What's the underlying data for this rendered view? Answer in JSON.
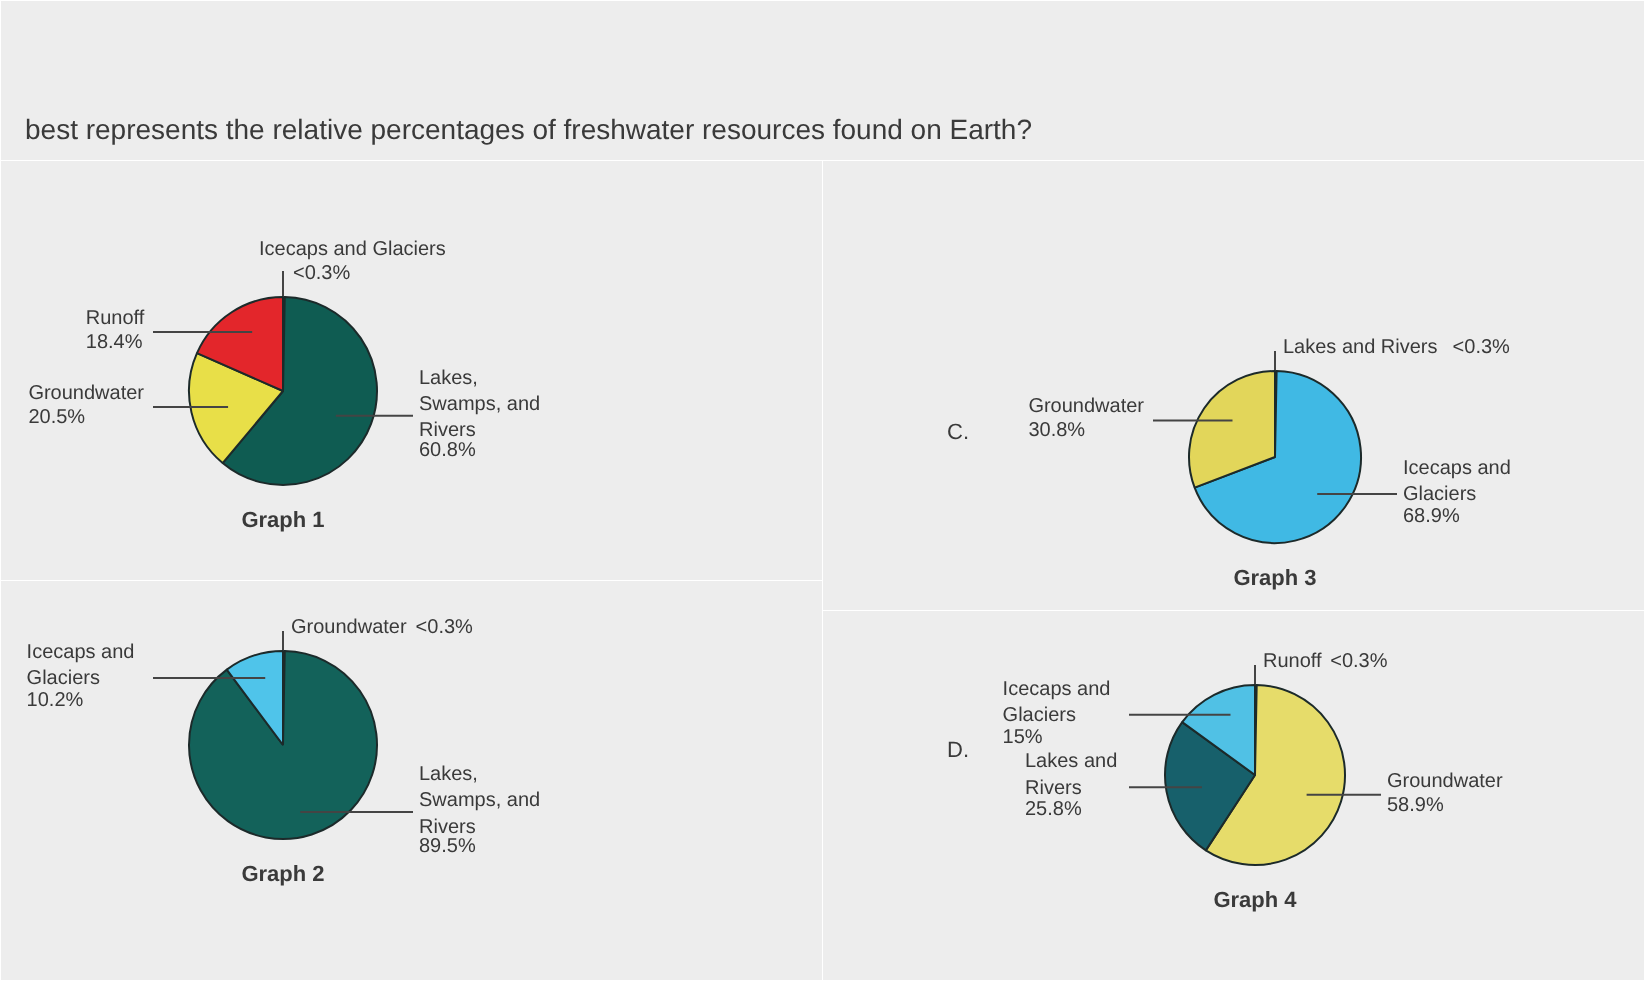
{
  "chart_data": [
    {
      "type": "pie",
      "title": "Graph 1",
      "annotations": [
        "best represents the relative percentages of freshwater resources found on Earth?"
      ],
      "categories": [
        "Icecaps and Glaciers",
        "Lakes, Swamps, and Rivers",
        "Groundwater",
        "Runoff"
      ],
      "values": [
        0.3,
        60.8,
        20.5,
        18.4
      ],
      "value_labels": [
        "<0.3%",
        "60.8%",
        "20.5%",
        "18.4%"
      ],
      "colors": [
        "#55c3e6",
        "#0f5c52",
        "#e8df48",
        "#e3262b"
      ]
    },
    {
      "type": "pie",
      "title": "Graph 2",
      "categories": [
        "Groundwater",
        "Lakes, Swamps, and Rivers",
        "Icecaps and Glaciers"
      ],
      "values": [
        0.3,
        89.5,
        10.2
      ],
      "value_labels": [
        "<0.3%",
        "89.5%",
        "10.2%"
      ],
      "colors": [
        "#e8df48",
        "#13625a",
        "#4fc4ea"
      ]
    },
    {
      "type": "pie",
      "title": "Graph 3",
      "annotations": [
        "C."
      ],
      "categories": [
        "Lakes and Rivers",
        "Icecaps and Glaciers",
        "Groundwater"
      ],
      "values": [
        0.3,
        68.9,
        30.8
      ],
      "value_labels": [
        "<0.3%",
        "68.9%",
        "30.8%"
      ],
      "colors": [
        "#13625a",
        "#40b9e4",
        "#e2d65a"
      ]
    },
    {
      "type": "pie",
      "title": "Graph 4",
      "annotations": [
        "D."
      ],
      "categories": [
        "Runoff",
        "Groundwater",
        "Lakes and Rivers",
        "Icecaps and Glaciers"
      ],
      "values": [
        0.3,
        58.9,
        25.8,
        15
      ],
      "value_labels": [
        "<0.3%",
        "58.9%",
        "25.8%",
        "15%"
      ],
      "colors": [
        "#e3262b",
        "#e6dc6a",
        "#17606b",
        "#50c1e5"
      ]
    }
  ]
}
